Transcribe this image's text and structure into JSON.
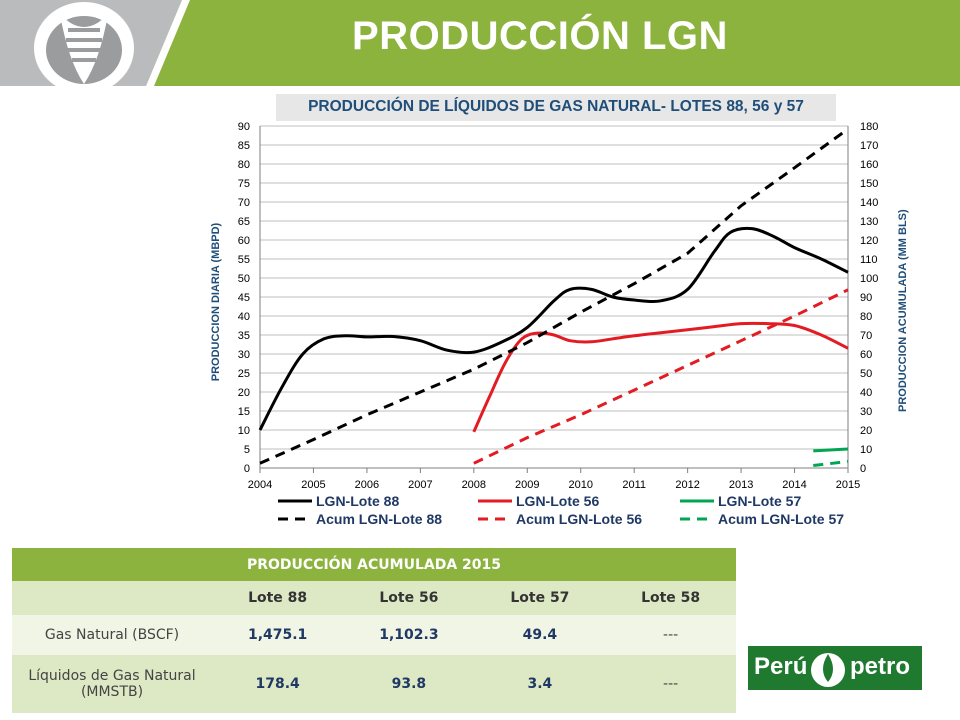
{
  "header": {
    "title": "PRODUCCIÓN LGN"
  },
  "colors": {
    "green": "#8db33f",
    "navy": "#1f4e79",
    "red": "#e31b23",
    "dark_green": "#00a651",
    "black": "#000000"
  },
  "chart_data": {
    "type": "line",
    "title": "PRODUCCIÓN  DE  LÍQUIDOS  DE  GAS  NATURAL-  LOTES  88,  56  y  57",
    "ylabel": "PRODUCCION  DIARIA (MBPD)",
    "y2label": "PRODUCCION  ACUMULADA  (MM BLS)",
    "x_ticks": [
      "2004",
      "2005",
      "2006",
      "2007",
      "2008",
      "2009",
      "2010",
      "2011",
      "2012",
      "2013",
      "2014",
      "2015"
    ],
    "xlim": [
      2004,
      2015
    ],
    "ylim": [
      0,
      90
    ],
    "y_ticks": [
      0,
      5,
      10,
      15,
      20,
      25,
      30,
      35,
      40,
      45,
      50,
      55,
      60,
      65,
      70,
      75,
      80,
      85,
      90
    ],
    "y2lim": [
      0,
      180
    ],
    "y2_ticks": [
      0,
      10,
      20,
      30,
      40,
      50,
      60,
      70,
      80,
      90,
      100,
      110,
      120,
      130,
      140,
      150,
      160,
      170,
      180
    ],
    "grid": true,
    "legend_position": "bottom",
    "series": [
      {
        "name": "LGN-Lote 88",
        "axis": "left",
        "style": "solid",
        "color": "#000000",
        "x": [
          2004.0,
          2004.4,
          2004.8,
          2005.2,
          2005.6,
          2006.0,
          2006.5,
          2007.0,
          2007.5,
          2008.0,
          2008.5,
          2009.0,
          2009.5,
          2009.8,
          2010.2,
          2010.6,
          2011.0,
          2011.5,
          2012.0,
          2012.5,
          2012.8,
          2013.2,
          2013.6,
          2014.0,
          2014.5,
          2015.0
        ],
        "y": [
          10,
          21,
          30,
          34,
          34.8,
          34.5,
          34.6,
          33.5,
          31,
          30.5,
          33,
          37,
          44,
          47,
          47,
          45,
          44.2,
          44,
          47,
          57,
          62,
          63,
          61,
          58,
          55,
          51.5
        ]
      },
      {
        "name": "LGN-Lote 56",
        "axis": "left",
        "style": "solid",
        "color": "#e31b23",
        "x": [
          2008.0,
          2008.3,
          2008.6,
          2008.9,
          2009.2,
          2009.5,
          2009.8,
          2010.2,
          2010.6,
          2011.0,
          2011.5,
          2012.0,
          2012.5,
          2013.0,
          2013.5,
          2014.0,
          2014.5,
          2015.0
        ],
        "y": [
          9.5,
          19,
          28,
          34,
          35.5,
          35,
          33.5,
          33.2,
          34,
          34.8,
          35.6,
          36.4,
          37.2,
          38,
          38,
          37.5,
          35,
          31.5
        ]
      },
      {
        "name": "LGN-Lote 57",
        "axis": "left",
        "style": "solid",
        "color": "#00a651",
        "x": [
          2014.35,
          2015.0
        ],
        "y": [
          4.5,
          5.0
        ]
      },
      {
        "name": "Acum LGN-Lote 88",
        "axis": "right",
        "style": "dashed",
        "color": "#000000",
        "x": [
          2004.0,
          2005.0,
          2006.0,
          2007.0,
          2008.0,
          2009.0,
          2010.0,
          2011.0,
          2012.0,
          2013.0,
          2014.0,
          2015.0
        ],
        "y": [
          2.5,
          15,
          28,
          40,
          52,
          66,
          82,
          97,
          113,
          138,
          158,
          178.4
        ]
      },
      {
        "name": "Acum LGN-Lote 56",
        "axis": "right",
        "style": "dashed",
        "color": "#e31b23",
        "x": [
          2008.0,
          2009.0,
          2010.0,
          2011.0,
          2012.0,
          2013.0,
          2014.0,
          2015.0
        ],
        "y": [
          2.5,
          16,
          28,
          41,
          54,
          67,
          80,
          93.8
        ]
      },
      {
        "name": "Acum LGN-Lote 57",
        "axis": "right",
        "style": "dashed",
        "color": "#00a651",
        "x": [
          2014.35,
          2015.0
        ],
        "y": [
          1.3,
          3.4
        ]
      }
    ]
  },
  "table": {
    "title": "PRODUCCIÓN ACUMULADA  2015",
    "columns": [
      "",
      "Lote 88",
      "Lote 56",
      "Lote 57",
      "Lote 58"
    ],
    "rows": [
      {
        "label": "Gas Natural (BSCF)",
        "values": [
          "1,475.1",
          "1,102.3",
          "49.4",
          "---"
        ]
      },
      {
        "label": "Líquidos de Gas Natural (MMSTB)",
        "values": [
          "178.4",
          "93.8",
          "3.4",
          "---"
        ]
      }
    ]
  },
  "logo": {
    "left_text": "Perú",
    "right_text": "petro"
  }
}
